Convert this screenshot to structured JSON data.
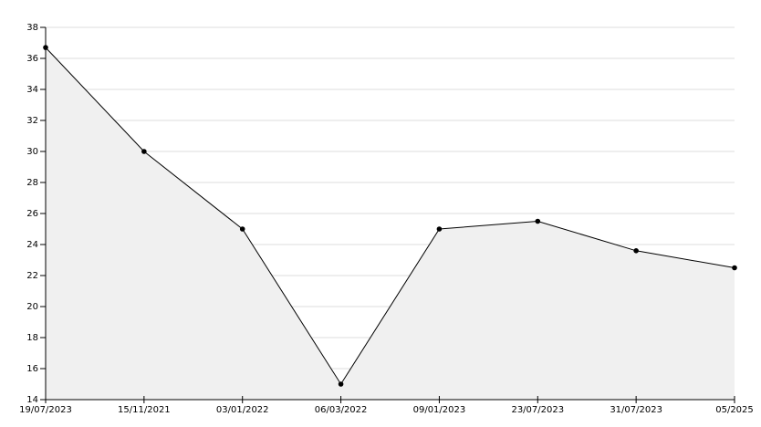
{
  "chart_data": {
    "type": "line",
    "categories": [
      "19/07/2023",
      "15/11/2021",
      "03/01/2022",
      "06/03/2022",
      "09/01/2023",
      "23/07/2023",
      "31/07/2023",
      "05/2025"
    ],
    "values": [
      36.7,
      30,
      25,
      15,
      25,
      25.5,
      23.6,
      22.5
    ],
    "color": "#000000",
    "area_color": "#f0f0f0",
    "ylim": [
      14,
      38
    ],
    "yticks": [
      14,
      16,
      18,
      20,
      22,
      24,
      26,
      28,
      30,
      32,
      34,
      36,
      38
    ],
    "grid": true
  }
}
